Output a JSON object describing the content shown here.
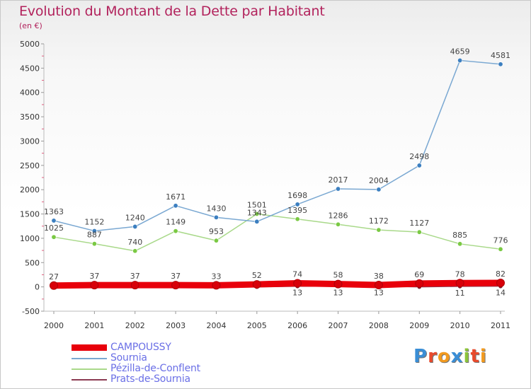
{
  "title": "Evolution du Montant de la Dette par Habitant",
  "subtitle": "(en €)",
  "logo": {
    "text": "Proxiti",
    "letters": [
      {
        "ch": "P",
        "color": "#3a8ed6"
      },
      {
        "ch": "r",
        "color": "#e84a2c"
      },
      {
        "ch": "o",
        "color": "#f29a1f"
      },
      {
        "ch": "x",
        "color": "#3a8ed6"
      },
      {
        "ch": "i",
        "color": "#8cc43a"
      },
      {
        "ch": "t",
        "color": "#e84a2c"
      },
      {
        "ch": "i",
        "color": "#f29a1f"
      }
    ]
  },
  "chart_data": {
    "type": "line",
    "title": "Evolution du Montant de la Dette par Habitant",
    "subtitle": "(en €)",
    "x": [
      "2000",
      "2001",
      "2002",
      "2003",
      "2004",
      "2005",
      "2006",
      "2007",
      "2008",
      "2009",
      "2010",
      "2011"
    ],
    "ylim": [
      -500,
      5000
    ],
    "yticks": [
      -500,
      0,
      500,
      1000,
      1500,
      2000,
      2500,
      3000,
      3500,
      4000,
      4500,
      5000
    ],
    "grid": false,
    "legend_position": "bottom-left",
    "series": [
      {
        "name": "CAMPOUSSY",
        "color": "#e8000b",
        "width": 9,
        "values": [
          27,
          37,
          37,
          37,
          33,
          52,
          74,
          58,
          38,
          69,
          78,
          82
        ],
        "labels": [
          "27",
          "37",
          "37",
          "37",
          "33",
          "52",
          "74",
          "58",
          "38",
          "69",
          "78",
          "82"
        ],
        "label_pos": "above"
      },
      {
        "name": "Sournia",
        "color": "#7aa8d2",
        "marker": "#3c7fc0",
        "width": 1.5,
        "values": [
          1363,
          1152,
          1240,
          1671,
          1430,
          1343,
          1698,
          2017,
          2004,
          2498,
          4659,
          4581
        ],
        "labels": [
          "1363",
          "1152",
          "1240",
          "1671",
          "1430",
          "1343",
          "1698",
          "2017",
          "2004",
          "2498",
          "4659",
          "4581"
        ],
        "label_pos": "above"
      },
      {
        "name": "Pézilla-de-Conflent",
        "color": "#a9d98a",
        "marker": "#7ac943",
        "width": 1.5,
        "values": [
          1025,
          887,
          740,
          1149,
          953,
          1501,
          1395,
          1286,
          1172,
          1127,
          885,
          776
        ],
        "labels": [
          "1025",
          "887",
          "740",
          "1149",
          "953",
          "1501",
          "1395",
          "1286",
          "1172",
          "1127",
          "885",
          "776"
        ],
        "label_pos": "above"
      },
      {
        "name": "Prats-de-Sournia",
        "color": "#8c3b52",
        "marker": "#7a1f33",
        "width": 1.5,
        "values": [
          0,
          0,
          0,
          0,
          0,
          0,
          13,
          13,
          13,
          0,
          11,
          14
        ],
        "labels": [
          "",
          "",
          "",
          "",
          "",
          "",
          "13",
          "13",
          "13",
          "",
          "11",
          "14"
        ],
        "label_pos": "below"
      }
    ]
  }
}
